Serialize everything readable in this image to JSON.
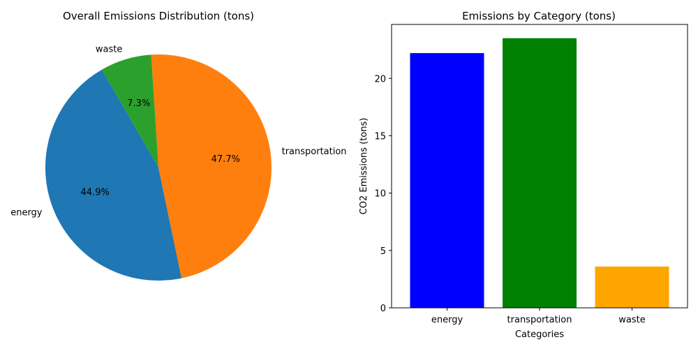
{
  "chart_data": [
    {
      "type": "pie",
      "title": "Overall Emissions Distribution (tons)",
      "categories": [
        "energy",
        "transportation",
        "waste"
      ],
      "values": [
        44.9,
        47.7,
        7.3
      ],
      "percent_labels": [
        "44.9%",
        "47.7%",
        "7.3%"
      ],
      "colors": [
        "#1f77b4",
        "#ff7f0e",
        "#2ca02c"
      ],
      "start_angle_deg": 120
    },
    {
      "type": "bar",
      "title": "Emissions by Category (tons)",
      "xlabel": "Categories",
      "ylabel": "CO2 Emissions (tons)",
      "categories": [
        "energy",
        "transportation",
        "waste"
      ],
      "values": [
        22.2,
        23.5,
        3.6
      ],
      "colors": [
        "#0000ff",
        "#008000",
        "#ffa500"
      ],
      "ylim": [
        0,
        24.7
      ],
      "yticks": [
        0,
        5,
        10,
        15,
        20
      ],
      "grid": false
    }
  ]
}
